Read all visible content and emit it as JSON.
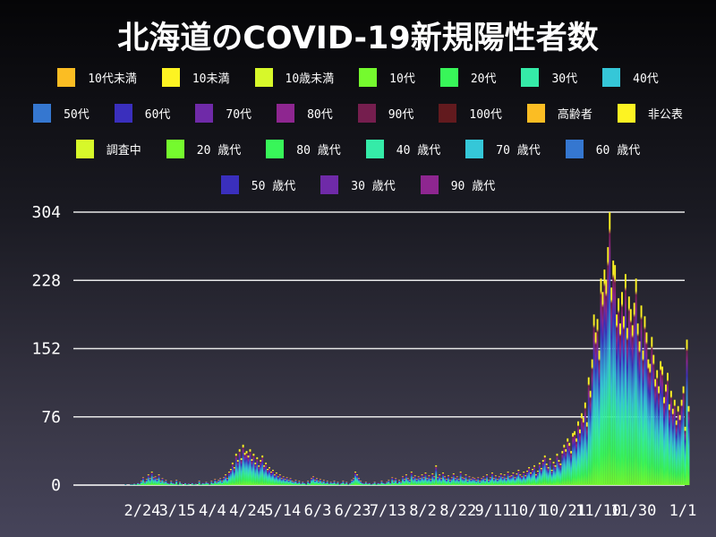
{
  "chart_data": {
    "type": "bar",
    "stacked": true,
    "title": "北海道のCOVID-19新規陽性者数",
    "xlabel": "",
    "ylabel": "",
    "ylim": [
      0,
      304
    ],
    "yticks": [
      "0",
      "76",
      "152",
      "228",
      "304"
    ],
    "xticks": [
      "2/24",
      "3/15",
      "4/4",
      "4/24",
      "5/14",
      "6/3",
      "6/23",
      "7/13",
      "8/2",
      "8/22",
      "9/11",
      "10/1",
      "10/21",
      "11/10",
      "11/30",
      "1/1"
    ],
    "xlim": [
      "1/29",
      "1/1"
    ],
    "grid": "horizontal",
    "legend_position": "top",
    "legend": [
      [
        {
          "name": "10代未満",
          "color": "#fbbd23"
        },
        {
          "name": "10未満",
          "color": "#fdf322"
        },
        {
          "name": "10歳未満",
          "color": "#d7f82a"
        },
        {
          "name": "10代",
          "color": "#75fa2e"
        },
        {
          "name": "20代",
          "color": "#38f659"
        },
        {
          "name": "30代",
          "color": "#35eba8"
        },
        {
          "name": "40代",
          "color": "#35c7d8"
        }
      ],
      [
        {
          "name": "50代",
          "color": "#3577d0"
        },
        {
          "name": "60代",
          "color": "#3a2fbd"
        },
        {
          "name": "70代",
          "color": "#6f2aa8"
        },
        {
          "name": "80代",
          "color": "#8e2690"
        },
        {
          "name": "90代",
          "color": "#751e4e"
        },
        {
          "name": "100代",
          "color": "#621a1e"
        },
        {
          "name": "高齢者",
          "color": "#fbbd23"
        },
        {
          "name": "非公表",
          "color": "#fdf322"
        }
      ],
      [
        {
          "name": "調査中",
          "color": "#d7f82a"
        },
        {
          "name": "20 歳代",
          "color": "#75fa2e"
        },
        {
          "name": "80 歳代",
          "color": "#38f659"
        },
        {
          "name": "40 歳代",
          "color": "#35eba8"
        },
        {
          "name": "70 歳代",
          "color": "#35c7d8"
        },
        {
          "name": "60 歳代",
          "color": "#3577d0"
        }
      ],
      [
        {
          "name": "50 歳代",
          "color": "#3a2fbd"
        },
        {
          "name": "30 歳代",
          "color": "#6f2aa8"
        },
        {
          "name": "90 歳代",
          "color": "#8e2690"
        }
      ]
    ],
    "daily_totals_by_month": {
      "2": [
        0,
        0,
        0,
        0,
        0,
        0,
        0,
        0,
        0,
        0,
        0,
        0,
        0,
        1,
        0,
        0,
        1,
        1,
        2,
        1,
        3,
        2,
        5,
        9,
        4,
        7,
        12,
        8,
        15
      ],
      "3": [
        9,
        10,
        7,
        12,
        5,
        8,
        4,
        6,
        3,
        2,
        5,
        3,
        2,
        6,
        1,
        4,
        2,
        0,
        3,
        1,
        2,
        0,
        3,
        1,
        2,
        0,
        5,
        1,
        3,
        2,
        4
      ],
      "4": [
        3,
        1,
        5,
        3,
        7,
        4,
        6,
        8,
        5,
        9,
        12,
        8,
        15,
        18,
        25,
        20,
        35,
        28,
        40,
        30,
        45,
        36,
        38,
        33,
        40,
        29,
        35,
        25,
        31,
        22
      ],
      "5": [
        28,
        33,
        22,
        25,
        18,
        20,
        15,
        17,
        12,
        14,
        10,
        12,
        8,
        10,
        7,
        9,
        6,
        8,
        5,
        4,
        6,
        3,
        5,
        2,
        4,
        3,
        1,
        5,
        3,
        8,
        10
      ],
      "6": [
        6,
        8,
        5,
        7,
        4,
        6,
        3,
        5,
        2,
        4,
        3,
        5,
        2,
        4,
        1,
        3,
        5,
        2,
        4,
        1,
        3,
        6,
        8,
        15,
        12,
        8,
        5,
        3,
        2,
        4
      ],
      "7": [
        2,
        3,
        1,
        2,
        4,
        1,
        3,
        2,
        5,
        3,
        2,
        4,
        6,
        3,
        9,
        5,
        8,
        3,
        6,
        4,
        10,
        7,
        12,
        8,
        6,
        15,
        9,
        11,
        7,
        10,
        8
      ],
      "8": [
        12,
        9,
        14,
        8,
        11,
        7,
        13,
        10,
        22,
        9,
        12,
        8,
        14,
        10,
        7,
        11,
        6,
        9,
        13,
        8,
        10,
        7,
        15,
        9,
        8,
        12,
        6,
        10,
        7,
        9,
        8
      ],
      "9": [
        6,
        9,
        5,
        8,
        10,
        7,
        12,
        6,
        9,
        14,
        8,
        11,
        7,
        10,
        13,
        9,
        12,
        8,
        15,
        10,
        11,
        14,
        9,
        13,
        17,
        12,
        10,
        15,
        11,
        16
      ],
      "10": [
        20,
        14,
        18,
        22,
        12,
        16,
        25,
        19,
        28,
        33,
        24,
        20,
        30,
        17,
        26,
        22,
        35,
        28,
        24,
        38,
        45,
        40,
        52,
        47,
        38,
        58,
        60,
        52,
        71,
        62,
        80
      ],
      "11": [
        75,
        92,
        70,
        120,
        105,
        140,
        190,
        170,
        185,
        150,
        230,
        215,
        240,
        228,
        265,
        304,
        220,
        250,
        245,
        190,
        208,
        180,
        215,
        188,
        235,
        175,
        210,
        196,
        178,
        203
      ],
      "12": [
        230,
        180,
        160,
        200,
        150,
        188,
        170,
        140,
        135,
        165,
        145,
        118,
        128,
        110,
        138,
        132,
        98,
        112,
        125,
        90,
        105,
        85,
        95,
        72,
        88,
        78,
        95,
        110,
        65,
        162,
        88
      ]
    }
  }
}
